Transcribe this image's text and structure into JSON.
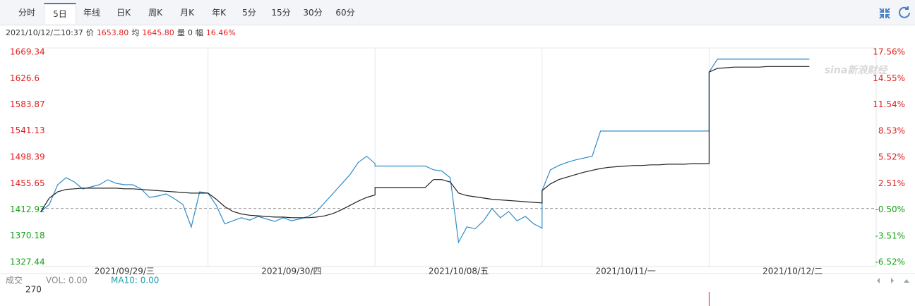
{
  "tabs": [
    "分时",
    "5日",
    "年线",
    "日K",
    "周K",
    "月K",
    "年K",
    "5分",
    "15分",
    "30分",
    "60分"
  ],
  "selected_tab": 1,
  "info": [
    {
      "text": "2021/10/12/二10:37",
      "color": "#333333"
    },
    {
      "text": "价",
      "color": "#333333"
    },
    {
      "text": "1653.80",
      "color": "#e02020"
    },
    {
      "text": "均",
      "color": "#333333"
    },
    {
      "text": "1645.80",
      "color": "#e02020"
    },
    {
      "text": "量",
      "color": "#333333"
    },
    {
      "text": "0",
      "color": "#333333"
    },
    {
      "text": "幅",
      "color": "#333333"
    },
    {
      "text": "16.46%",
      "color": "#e02020"
    }
  ],
  "chart_data": {
    "type": "line",
    "watermark": "sina新浪财经",
    "days": [
      "2021/09/29/三",
      "2021/09/30/四",
      "2021/10/08/五",
      "2021/10/11/一",
      "2021/10/12/二"
    ],
    "ylim": [
      1327.44,
      1669.34
    ],
    "yticks": [
      1669.34,
      1626.6,
      1583.87,
      1541.13,
      1498.39,
      1455.65,
      1412.92,
      1370.18,
      1327.44
    ],
    "y2lim": [
      -6.52,
      17.56
    ],
    "y2ticks": [
      {
        "value": 17.56,
        "label": "17.56%"
      },
      {
        "value": 14.55,
        "label": "14.55%"
      },
      {
        "value": 11.54,
        "label": "11.54%"
      },
      {
        "value": 8.53,
        "label": "8.53%"
      },
      {
        "value": 5.52,
        "label": "5.52%"
      },
      {
        "value": 2.51,
        "label": "2.51%"
      },
      {
        "value": -0.5,
        "label": "-0.50%"
      },
      {
        "value": -3.51,
        "label": "-3.51%"
      },
      {
        "value": -6.52,
        "label": "-6.52%"
      }
    ],
    "baseline": 1415,
    "up_color": "#e02020",
    "down_color": "#19a019",
    "series": [
      {
        "color": "#2f8bc9",
        "values": [
          1410,
          1421.5,
          1453.6,
          1465.1,
          1458.2,
          1446.7,
          1450.2,
          1453.6,
          1461.7,
          1455.9,
          1453.6,
          1453.6,
          1446.7,
          1433,
          1435.3,
          1438.7,
          1430.7,
          1421.5,
          1384.8,
          1442.1,
          1440,
          1440,
          1420,
          1390,
          1395,
          1400,
          1396,
          1402,
          1398,
          1394,
          1400,
          1395,
          1398,
          1402,
          1410,
          1425,
          1440,
          1455,
          1470,
          1490,
          1500,
          1488,
          1484,
          1484,
          1484,
          1484,
          1484,
          1484,
          1484,
          1478,
          1476,
          1465,
          1360,
          1385,
          1382,
          1395,
          1415,
          1400,
          1410,
          1395,
          1402,
          1390,
          1383,
          1444,
          1478,
          1485,
          1490,
          1494,
          1497,
          1500,
          1541,
          1541,
          1541,
          1541,
          1541,
          1541,
          1541,
          1541,
          1541,
          1541,
          1541,
          1541,
          1541,
          1541,
          1637,
          1658,
          1658,
          1658,
          1658,
          1658,
          1658,
          1658,
          1658,
          1658,
          1658,
          1658,
          1658,
          null,
          null,
          null,
          null,
          null,
          null,
          null,
          null
        ]
      },
      {
        "color": "#222222",
        "values": [
          1410,
          1432,
          1442,
          1446,
          1447,
          1448,
          1448,
          1448,
          1448,
          1448,
          1447,
          1447,
          1446,
          1445,
          1444,
          1443,
          1442,
          1441,
          1440,
          1440,
          1440,
          1440,
          1430,
          1418,
          1410,
          1406,
          1404,
          1403,
          1402,
          1401,
          1401,
          1400,
          1400,
          1400,
          1401,
          1403,
          1407,
          1413,
          1420,
          1427,
          1433,
          1437,
          1449,
          1449,
          1449,
          1449,
          1449,
          1449,
          1449,
          1462,
          1462,
          1458,
          1440,
          1436,
          1434,
          1432,
          1430,
          1429,
          1428,
          1427,
          1426,
          1425,
          1424,
          1444,
          1455,
          1462,
          1466,
          1470,
          1474,
          1477,
          1480,
          1482,
          1483,
          1484,
          1485,
          1485,
          1486,
          1486,
          1487,
          1487,
          1487,
          1488,
          1488,
          1488,
          1637,
          1643,
          1644,
          1645,
          1645,
          1645,
          1645,
          1646,
          1646,
          1646,
          1646,
          1646,
          1646,
          null,
          null,
          null,
          null,
          null,
          null,
          null,
          null
        ]
      }
    ]
  },
  "volume": {
    "label": "成交",
    "vol": "VOL: 0.00",
    "ma": "MA10: 0.00",
    "yticks": [
      270
    ]
  }
}
